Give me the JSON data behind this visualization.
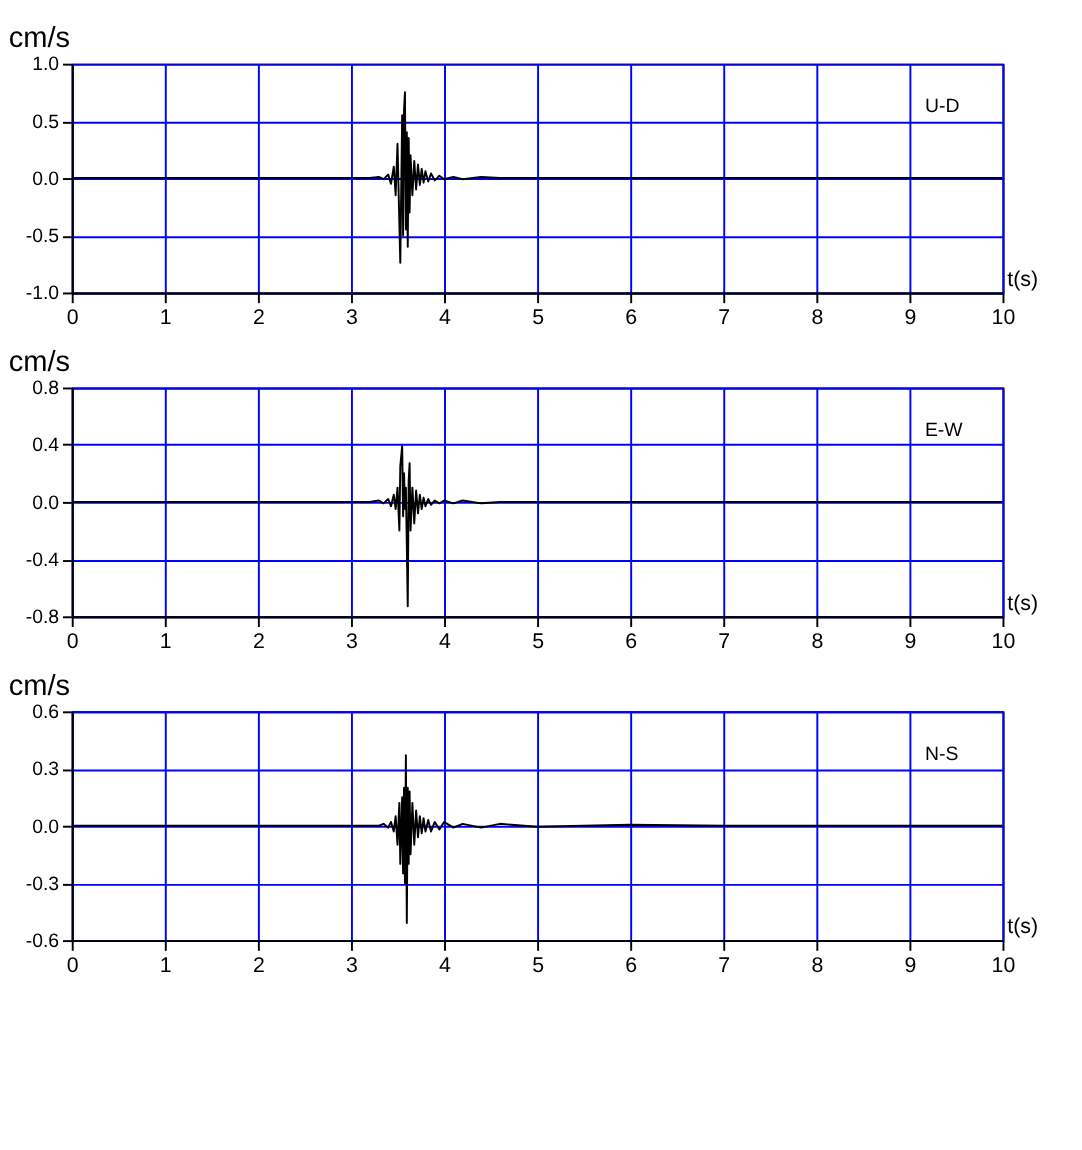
{
  "chart_data": [
    {
      "type": "line",
      "ylabel": "cm/s",
      "xlabel": "t(s)",
      "annotations": [
        "U-D"
      ],
      "grid": true,
      "xlim": [
        0,
        10
      ],
      "ylim": [
        -1,
        1
      ],
      "xticks": [
        0,
        1,
        2,
        3,
        4,
        5,
        6,
        7,
        8,
        9,
        10
      ],
      "yticks": [
        {
          "value": -1,
          "label": "-1.0"
        },
        -0.5,
        {
          "value": 0,
          "label": "0.0"
        },
        0.5,
        {
          "value": 1,
          "label": "1.0"
        }
      ],
      "series": [
        {
          "color": "#000000",
          "x": [
            0,
            3.2,
            3.3,
            3.35,
            3.4,
            3.43,
            3.46,
            3.48,
            3.5,
            3.52,
            3.53,
            3.55,
            3.56,
            3.57,
            3.58,
            3.59,
            3.6,
            3.61,
            3.62,
            3.63,
            3.64,
            3.66,
            3.68,
            3.7,
            3.72,
            3.74,
            3.76,
            3.78,
            3.8,
            3.83,
            3.86,
            3.9,
            3.95,
            4.0,
            4.1,
            4.2,
            4.4,
            4.6,
            5,
            6,
            7,
            8,
            9,
            10
          ],
          "values": [
            0,
            0,
            0.01,
            -0.01,
            0.03,
            -0.05,
            0.1,
            -0.15,
            0.3,
            -0.4,
            -0.74,
            0.55,
            -0.5,
            0.6,
            0.75,
            -0.45,
            0.4,
            -0.6,
            0.35,
            -0.3,
            0.2,
            -0.15,
            0.15,
            -0.1,
            0.12,
            -0.06,
            0.08,
            -0.04,
            0.06,
            -0.03,
            0.04,
            -0.02,
            0.02,
            -0.01,
            0.01,
            -0.01,
            0.01,
            0,
            0,
            0,
            0,
            0,
            0,
            0
          ]
        }
      ]
    },
    {
      "type": "line",
      "ylabel": "cm/s",
      "xlabel": "t(s)",
      "annotations": [
        "E-W"
      ],
      "grid": true,
      "xlim": [
        0,
        10
      ],
      "ylim": [
        -0.8,
        0.8
      ],
      "xticks": [
        0,
        1,
        2,
        3,
        4,
        5,
        6,
        7,
        8,
        9,
        10
      ],
      "yticks": [
        -0.8,
        -0.4,
        {
          "value": 0,
          "label": "0.0"
        },
        0.4,
        0.8
      ],
      "series": [
        {
          "color": "#000000",
          "x": [
            0,
            3.2,
            3.3,
            3.35,
            3.4,
            3.43,
            3.46,
            3.48,
            3.5,
            3.52,
            3.53,
            3.55,
            3.56,
            3.57,
            3.58,
            3.59,
            3.6,
            3.61,
            3.62,
            3.63,
            3.64,
            3.66,
            3.68,
            3.7,
            3.72,
            3.74,
            3.76,
            3.78,
            3.8,
            3.83,
            3.86,
            3.9,
            3.95,
            4.0,
            4.1,
            4.2,
            4.4,
            4.6,
            5,
            6,
            7,
            8,
            9,
            10
          ],
          "values": [
            0,
            0,
            0.01,
            -0.01,
            0.02,
            -0.03,
            0.05,
            -0.05,
            0.1,
            -0.2,
            0.25,
            0.39,
            -0.1,
            0.2,
            -0.05,
            0.1,
            -0.3,
            -0.73,
            0.15,
            0.27,
            -0.2,
            0.1,
            -0.15,
            0.08,
            -0.08,
            0.05,
            -0.05,
            0.03,
            -0.03,
            0.02,
            -0.02,
            0.01,
            -0.01,
            0.01,
            -0.01,
            0.01,
            -0.01,
            0,
            0,
            0,
            0,
            0,
            0,
            0
          ]
        }
      ]
    },
    {
      "type": "line",
      "ylabel": "cm/s",
      "xlabel": "t(s)",
      "annotations": [
        "N-S"
      ],
      "grid": true,
      "xlim": [
        0,
        10
      ],
      "ylim": [
        -0.6,
        0.6
      ],
      "xticks": [
        0,
        1,
        2,
        3,
        4,
        5,
        6,
        7,
        8,
        9,
        10
      ],
      "yticks": [
        -0.6,
        -0.3,
        {
          "value": 0,
          "label": "0.0"
        },
        0.3,
        0.6
      ],
      "series": [
        {
          "color": "#000000",
          "x": [
            0,
            3.2,
            3.3,
            3.35,
            3.4,
            3.43,
            3.46,
            3.48,
            3.5,
            3.52,
            3.53,
            3.55,
            3.56,
            3.57,
            3.58,
            3.59,
            3.6,
            3.61,
            3.62,
            3.63,
            3.64,
            3.66,
            3.68,
            3.7,
            3.72,
            3.74,
            3.76,
            3.78,
            3.8,
            3.83,
            3.86,
            3.9,
            3.95,
            4.0,
            4.1,
            4.2,
            4.4,
            4.6,
            5,
            6,
            7,
            8,
            9,
            10
          ],
          "values": [
            0,
            0,
            0,
            0.01,
            -0.01,
            0.02,
            -0.03,
            0.05,
            -0.1,
            0.12,
            -0.2,
            0.15,
            -0.25,
            0.2,
            -0.3,
            0.37,
            -0.51,
            0.2,
            -0.2,
            0.18,
            -0.15,
            0.12,
            -0.1,
            0.08,
            -0.06,
            0.05,
            -0.04,
            0.04,
            -0.03,
            0.03,
            -0.03,
            0.02,
            -0.02,
            0.02,
            -0.01,
            0.01,
            -0.01,
            0.01,
            -0.005,
            0.005,
            0,
            0,
            0,
            0
          ]
        }
      ]
    }
  ]
}
